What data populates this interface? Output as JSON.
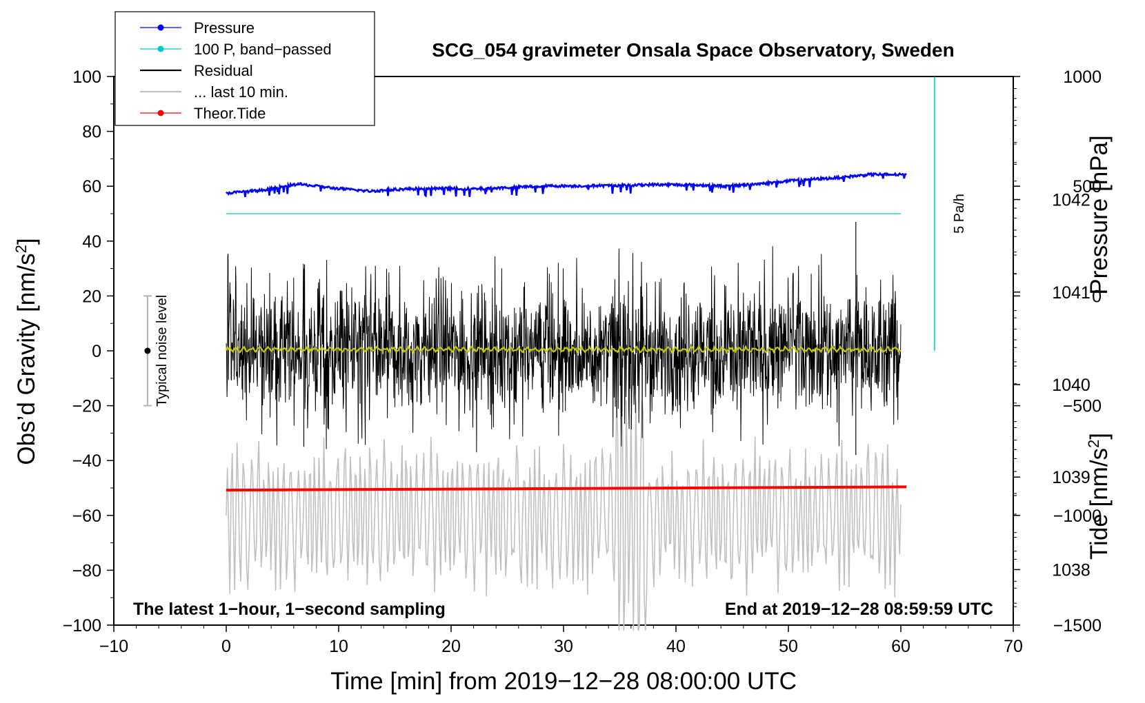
{
  "chart_data": {
    "type": "line",
    "title": "SCG_054 gravimeter Onsala Space Observatory, Sweden",
    "xlabel": "Time [min] from 2019−12−28 08:00:00 UTC",
    "ylabel_main": "Obs’d Gravity [nm/s",
    "ylabel_main_sup": "2",
    "ylabel_main_end": "]",
    "ylabel_pressure": "Pressure [hPa]",
    "ylabel_tide": "Tide [nm/s",
    "ylabel_tide_sup": "2",
    "ylabel_tide_end": "]",
    "xlim": [
      -10,
      70
    ],
    "ylim": [
      -100,
      100
    ],
    "x_ticks": [
      "−10",
      "0",
      "10",
      "20",
      "30",
      "40",
      "50",
      "60",
      "70"
    ],
    "y_ticks": [
      "100",
      "80",
      "60",
      "40",
      "20",
      "0",
      "−20",
      "−40",
      "−60",
      "−80",
      "−100"
    ],
    "pressure_axis": {
      "ticks": [
        "1042",
        "1041",
        "1040",
        "1039",
        "1038"
      ],
      "values": [
        1042,
        1041,
        1040,
        1039,
        1038
      ],
      "range_hpa": [
        1037.4,
        1043.33
      ]
    },
    "tide_axis": {
      "ticks": [
        "1000",
        "500",
        "0",
        "−500",
        "−1000",
        "−1500"
      ],
      "values": [
        1000,
        500,
        0,
        -500,
        -1000,
        -1500
      ],
      "range": [
        -1500,
        1000
      ]
    },
    "legend": [
      {
        "label": "Pressure",
        "color": "#0000ff",
        "marker": true
      },
      {
        "label": "100 P, band−passed",
        "color": "#00c8c8",
        "marker": true
      },
      {
        "label": "Residual",
        "color": "#000000",
        "marker": false
      },
      {
        "label": "... last 10 min.",
        "color": "#c0c0c0",
        "marker": false
      },
      {
        "label": "Theor.Tide",
        "color": "#ff0000",
        "marker": true
      }
    ],
    "series": [
      {
        "name": "Pressure",
        "color": "#0000ff",
        "x_range": [
          0,
          60.5
        ],
        "values_main_units": [
          57.5,
          58.5,
          60.8,
          59.3,
          58.2,
          59.0,
          59.2,
          59.0,
          59.6,
          60.1,
          60.1,
          60.3,
          60.6,
          60.5,
          60.0,
          61.0,
          62.3,
          63.0,
          64.3,
          64.2
        ]
      },
      {
        "name": "Pressure band-passed",
        "color": "#00c8c8",
        "x_range": [
          0,
          60
        ],
        "value": 50
      },
      {
        "name": "Residual",
        "color": "#000000",
        "x_range": [
          0,
          60
        ],
        "amplitude": 20,
        "min": -37,
        "max": 47
      },
      {
        "name": "Residual smoothed",
        "color": "#c8c800",
        "x_range": [
          0,
          60
        ],
        "value": 0.5
      },
      {
        "name": "... last 10 min.",
        "color": "#c0c0c0",
        "x_range": [
          0,
          60
        ],
        "center": -60,
        "amplitude": 30
      },
      {
        "name": "Theor.Tide",
        "color": "#ff0000",
        "x_range": [
          0,
          60.5
        ],
        "start": -50.8,
        "end": -49.6
      }
    ],
    "annotations": {
      "noise_label": "Typical noise level",
      "noise_range": [
        -20,
        20
      ],
      "noise_x": -7,
      "pressure_rate_label": "5 Pa/h",
      "pressure_rate_x": 63,
      "pressure_rate_range": [
        0,
        100
      ],
      "bottom_left": "The latest 1−hour, 1−second sampling",
      "bottom_right": "End at 2019−12−28 08:59:59 UTC"
    }
  }
}
